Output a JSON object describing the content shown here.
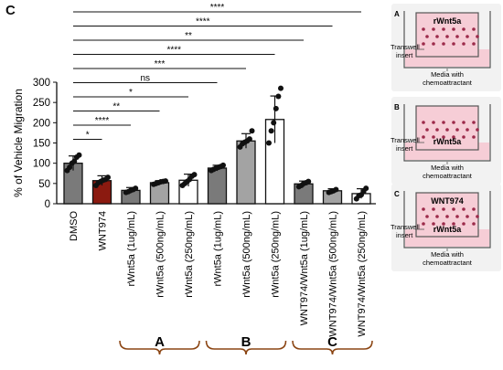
{
  "panel_label": "C",
  "chart_data": {
    "type": "bar",
    "ylabel": "% of Vehicle Migration",
    "ylim": [
      0,
      300
    ],
    "yticks": [
      0,
      50,
      100,
      150,
      200,
      250,
      300
    ],
    "categories": [
      "DMSO",
      "WNT974",
      "rWnt5a (1ug/mL)",
      "rWnt5a (500ng/mL)",
      "rWnt5a (250ng/mL)",
      "rWnt5a (1ug/mL)",
      "rWnt5a (500ng/mL)",
      "rWnt5a (250ng/mL)",
      "WNT974/Wnt5a (1ug/mL)",
      "WNT974/Wnt5a (500ng/mL)",
      "WNT974/Wnt5a (250ng/mL)"
    ],
    "values": [
      100,
      57,
      33,
      52,
      58,
      88,
      155,
      208,
      49,
      32,
      25
    ],
    "errors": [
      18,
      12,
      7,
      5,
      15,
      7,
      18,
      58,
      7,
      5,
      12
    ],
    "bar_colors": [
      "#7a7a7a",
      "#8b1a10",
      "#7a7a7a",
      "#a3a3a3",
      "#ffffff",
      "#7a7a7a",
      "#a3a3a3",
      "#ffffff",
      "#7a7a7a",
      "#a3a3a3",
      "#ffffff"
    ],
    "points": [
      [
        82,
        90,
        100,
        105,
        115,
        120
      ],
      [
        45,
        52,
        55,
        58,
        60,
        65
      ],
      [
        28,
        30,
        33,
        35,
        38
      ],
      [
        48,
        50,
        52,
        54,
        55,
        56
      ],
      [
        45,
        50,
        55,
        60,
        68,
        72
      ],
      [
        82,
        85,
        88,
        90,
        92,
        95
      ],
      [
        140,
        148,
        152,
        155,
        160,
        180
      ],
      [
        150,
        180,
        200,
        235,
        265,
        285
      ],
      [
        42,
        45,
        50,
        52,
        55
      ],
      [
        28,
        30,
        32,
        35
      ],
      [
        12,
        20,
        22,
        30,
        38
      ]
    ],
    "comparisons": [
      {
        "to": 10,
        "label": "****"
      },
      {
        "to": 9,
        "label": "****"
      },
      {
        "to": 8,
        "label": "**"
      },
      {
        "to": 7,
        "label": "****"
      },
      {
        "to": 6,
        "label": "***"
      },
      {
        "to": 5,
        "label": "ns"
      },
      {
        "to": 4,
        "label": "*"
      },
      {
        "to": 3,
        "label": "**"
      },
      {
        "to": 2,
        "label": "****"
      },
      {
        "to": 1,
        "label": "*"
      }
    ],
    "groups": [
      {
        "label": "A",
        "from": 2,
        "to": 4
      },
      {
        "label": "B",
        "from": 5,
        "to": 7
      },
      {
        "label": "C",
        "from": 8,
        "to": 10
      }
    ]
  },
  "diagrams": [
    {
      "letter": "A",
      "box_label": "rWnt5a",
      "box_pos": "top",
      "insert_label": "Transwell insert",
      "media_label": "Media with chemoattractant"
    },
    {
      "letter": "B",
      "box_label": "rWnt5a",
      "box_pos": "bottom",
      "insert_label": "Transwell insert",
      "media_label": "Media with chemoattractant"
    },
    {
      "letter": "C",
      "box_label": "WNT974",
      "box_pos": "top",
      "box_label_bottom": "rWnt5a",
      "insert_label": "Transwell insert",
      "media_label": "Media with chemoattractant"
    }
  ],
  "colors": {
    "brace": "#8b4513",
    "well_fill": "#f6cdd6",
    "dot": "#9c2a4a",
    "panel_bg": "#f2f2f2"
  }
}
